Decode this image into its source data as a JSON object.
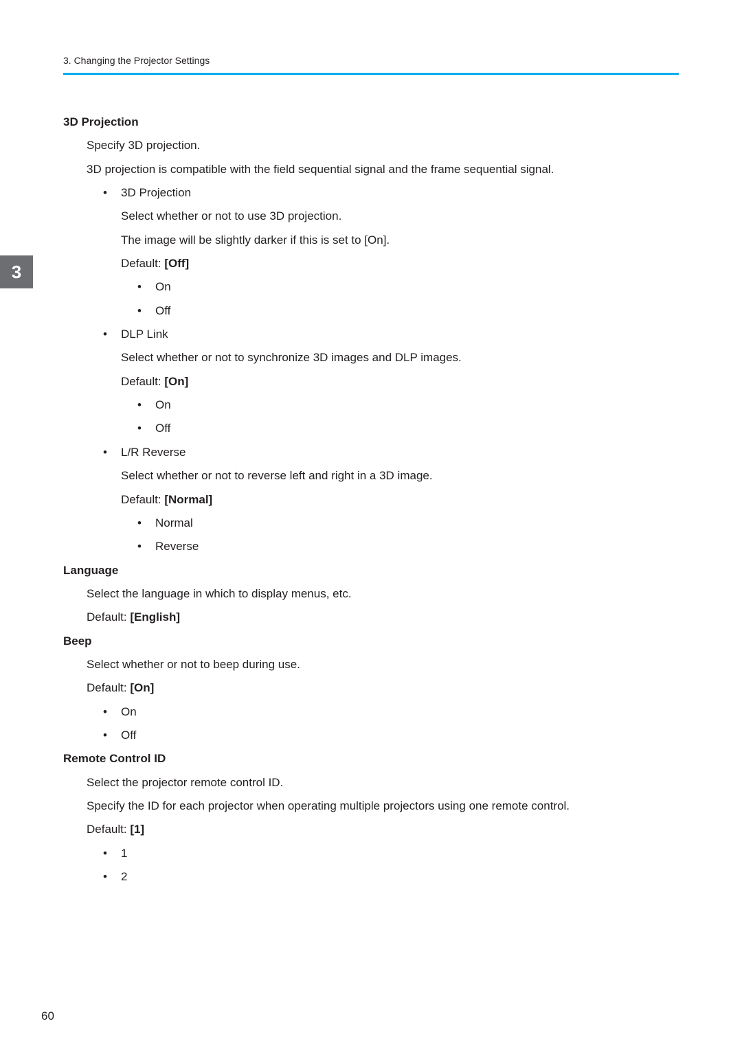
{
  "header": {
    "breadcrumb": "3. Changing the Projector Settings",
    "accent_color": "#00aeef"
  },
  "tab": {
    "number": "3",
    "bg": "#6d6e71",
    "fg": "#ffffff"
  },
  "sections": {
    "projection3d": {
      "title": "3D Projection",
      "intro1": "Specify 3D projection.",
      "intro2": "3D projection is compatible with the field sequential signal and the frame sequential signal.",
      "sub_3d": {
        "name": "3D Projection",
        "desc": "Select whether or not to use 3D projection.",
        "desc2": "The image will be slightly darker if this is set to [On].",
        "default_label": "Default: ",
        "default_value": "[Off]",
        "opt1": "On",
        "opt2": "Off"
      },
      "sub_dlp": {
        "name": "DLP Link",
        "desc": "Select whether or not to synchronize 3D images and DLP images.",
        "default_label": "Default: ",
        "default_value": "[On]",
        "opt1": "On",
        "opt2": "Off"
      },
      "sub_lr": {
        "name": "L/R Reverse",
        "desc": "Select whether or not to reverse left and right in a 3D image.",
        "default_label": "Default: ",
        "default_value": "[Normal]",
        "opt1": "Normal",
        "opt2": "Reverse"
      }
    },
    "language": {
      "title": "Language",
      "desc": "Select the language in which to display menus, etc.",
      "default_label": "Default: ",
      "default_value": "[English]"
    },
    "beep": {
      "title": "Beep",
      "desc": "Select whether or not to beep during use.",
      "default_label": "Default: ",
      "default_value": "[On]",
      "opt1": "On",
      "opt2": "Off"
    },
    "remote": {
      "title": "Remote Control ID",
      "desc": "Select the projector remote control ID.",
      "desc2": "Specify the ID for each projector when operating multiple projectors using one remote control.",
      "default_label": "Default: ",
      "default_value": "[1]",
      "opt1": "1",
      "opt2": "2"
    }
  },
  "page_number": "60"
}
